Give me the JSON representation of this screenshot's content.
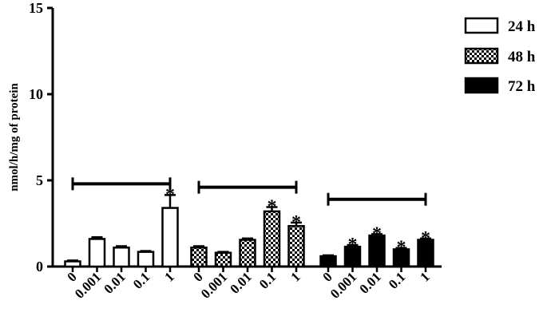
{
  "chart_data": {
    "type": "bar",
    "ylabel": "nmol/h/mg of protein",
    "ylim": [
      0,
      15
    ],
    "yticks": [
      0,
      5,
      10,
      15
    ],
    "categories": [
      "0",
      "0.001",
      "0.01",
      "0.1",
      "1"
    ],
    "series": [
      {
        "name": "24 h",
        "pattern": "open",
        "values": [
          0.3,
          1.6,
          1.1,
          0.85,
          3.4
        ],
        "errors": [
          0.05,
          0.1,
          0.08,
          0.05,
          0.75
        ],
        "significant": [
          false,
          false,
          false,
          false,
          true
        ]
      },
      {
        "name": "48 h",
        "pattern": "checker",
        "values": [
          1.1,
          0.8,
          1.55,
          3.2,
          2.35
        ],
        "errors": [
          0.08,
          0.05,
          0.08,
          0.25,
          0.2
        ],
        "significant": [
          false,
          false,
          false,
          true,
          true
        ]
      },
      {
        "name": "72 h",
        "pattern": "solid",
        "values": [
          0.6,
          1.15,
          1.8,
          1.0,
          1.55
        ],
        "errors": [
          0.05,
          0.1,
          0.08,
          0.08,
          0.08
        ],
        "significant": [
          false,
          true,
          true,
          true,
          true
        ]
      }
    ],
    "group_brackets": [
      4.8,
      4.6,
      3.9
    ],
    "significance_marker": "*",
    "legend_position": "top-right",
    "grid": false
  }
}
